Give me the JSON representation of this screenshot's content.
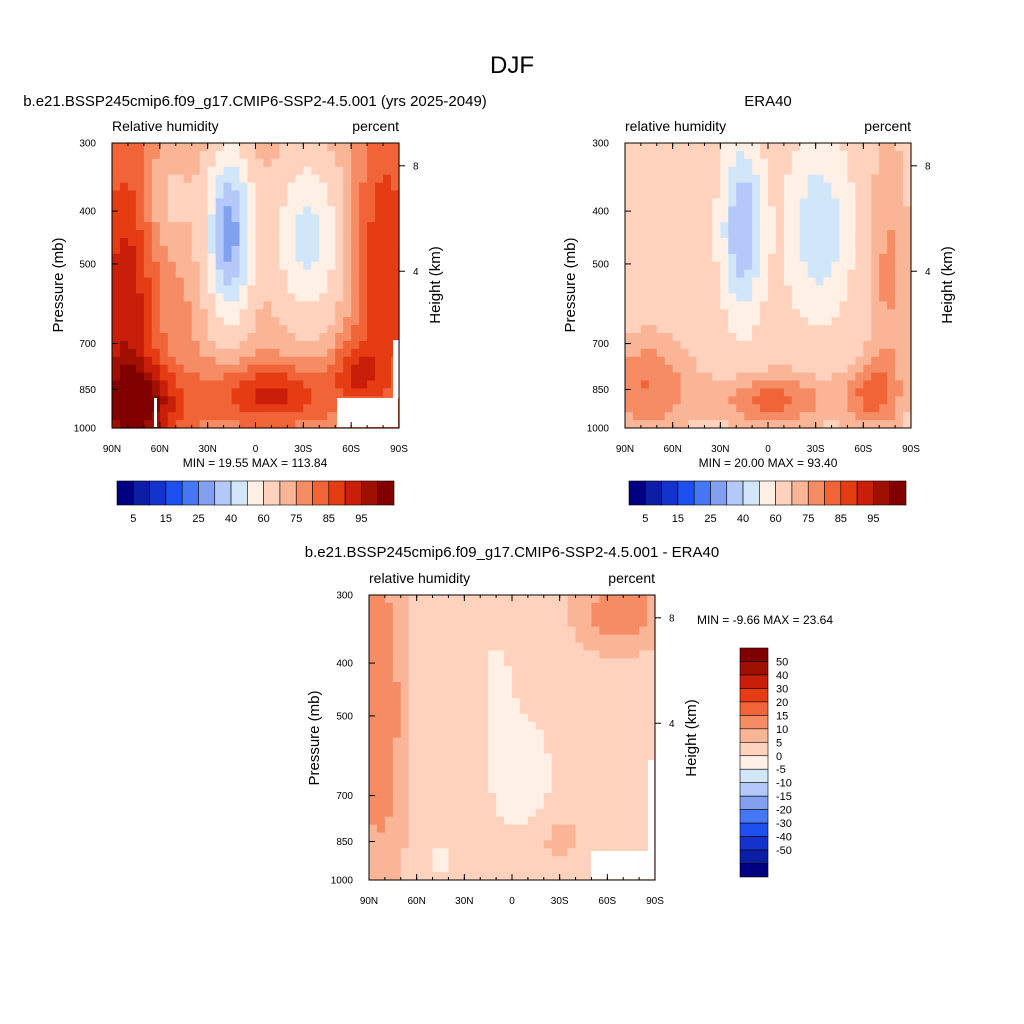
{
  "figure": {
    "title": "DJF"
  },
  "palettes": {
    "abs": [
      "#000080",
      "#0a1ea6",
      "#1432cc",
      "#1e50f0",
      "#4678f5",
      "#82a0f0",
      "#b4c8fa",
      "#d2e6fa",
      "#fff0e6",
      "#ffd2be",
      "#fab496",
      "#f58c64",
      "#f06438",
      "#e63c14",
      "#c81e0a",
      "#a01000",
      "#800000"
    ],
    "diff": [
      "#000080",
      "#0a1ea6",
      "#1432cc",
      "#1e50f0",
      "#4678f5",
      "#82a0f0",
      "#b4c8fa",
      "#d2e6fa",
      "#fff0e6",
      "#ffd2be",
      "#fab496",
      "#f58c64",
      "#f06438",
      "#e63c14",
      "#c81e0a",
      "#a01000",
      "#800000"
    ]
  },
  "chart_data": [
    {
      "type": "heatmap",
      "id": "model",
      "title": "b.e21.BSSP245cmip6.f09_g17.CMIP6-SSP2-4.5.001 (yrs 2025-2049)",
      "left_label": "Relative humidity",
      "right_label": "percent",
      "ylabel": "Pressure (mb)",
      "y2label": "Height (km)",
      "x_ticks": [
        "90N",
        "60N",
        "30N",
        "0",
        "30S",
        "60S",
        "90S"
      ],
      "y_ticks": [
        "300",
        "400",
        "500",
        "700",
        "850",
        "1000"
      ],
      "y2_ticks": [
        "8",
        "4"
      ],
      "minmax": "MIN =  19.55  MAX = 113.84",
      "levels": [
        "5",
        "15",
        "25",
        "40",
        "60",
        "75",
        "85",
        "95"
      ],
      "lat_range": [
        90,
        -90
      ],
      "pressure_range": [
        300,
        1000
      ]
    },
    {
      "type": "heatmap",
      "id": "obs",
      "title": "ERA40",
      "left_label": "relative humidity",
      "right_label": "percent",
      "ylabel": "Pressure (mb)",
      "y2label": "Height (km)",
      "x_ticks": [
        "90N",
        "60N",
        "30N",
        "0",
        "30S",
        "60S",
        "90S"
      ],
      "y_ticks": [
        "300",
        "400",
        "500",
        "700",
        "850",
        "1000"
      ],
      "y2_ticks": [
        "8",
        "4"
      ],
      "minmax": "MIN =  20.00  MAX =  93.40",
      "levels": [
        "5",
        "15",
        "25",
        "40",
        "60",
        "75",
        "85",
        "95"
      ],
      "lat_range": [
        90,
        -90
      ],
      "pressure_range": [
        300,
        1000
      ]
    },
    {
      "type": "heatmap",
      "id": "diff",
      "title": "b.e21.BSSP245cmip6.f09_g17.CMIP6-SSP2-4.5.001 - ERA40",
      "left_label": "relative humidity",
      "right_label": "percent",
      "ylabel": "Pressure (mb)",
      "y2label": "Height (km)",
      "x_ticks": [
        "90N",
        "60N",
        "30N",
        "0",
        "30S",
        "60S",
        "90S"
      ],
      "y_ticks": [
        "300",
        "400",
        "500",
        "700",
        "850",
        "1000"
      ],
      "y2_ticks": [
        "8",
        "4"
      ],
      "minmax": "MIN =  -9.66  MAX =  23.64",
      "levels": [
        "50",
        "40",
        "30",
        "20",
        "15",
        "10",
        "5",
        "0",
        "-5",
        "-10",
        "-15",
        "-20",
        "-30",
        "-40",
        "-50"
      ],
      "lat_range": [
        90,
        -90
      ],
      "pressure_range": [
        300,
        1000
      ]
    }
  ]
}
